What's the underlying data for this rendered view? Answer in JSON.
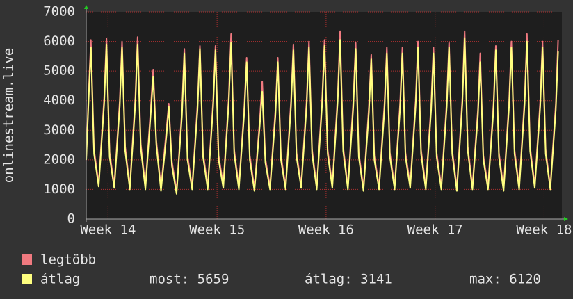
{
  "chart_data": {
    "type": "line",
    "ylabel": "onlinestream.live",
    "x": [
      0,
      0.15,
      0.3,
      0.5,
      0.8,
      1.15,
      1.3,
      1.5,
      1.8,
      2.15,
      2.3,
      2.5,
      2.8,
      3.15,
      3.3,
      3.5,
      3.8,
      4.15,
      4.3,
      4.5,
      4.8,
      5.15,
      5.3,
      5.5,
      5.8,
      6.15,
      6.3,
      6.5,
      6.8,
      7.15,
      7.3,
      7.5,
      7.8,
      8.15,
      8.3,
      8.5,
      8.8,
      9.15,
      9.3,
      9.5,
      9.8,
      10.15,
      10.3,
      10.5,
      10.8,
      11.15,
      11.3,
      11.5,
      11.8,
      12.15,
      12.3,
      12.5,
      12.8,
      13.15,
      13.3,
      13.5,
      13.8,
      14.15,
      14.3,
      14.5,
      14.8,
      15.15,
      15.3,
      15.5,
      15.8,
      16.15,
      16.3,
      16.5,
      16.8,
      17.15,
      17.3,
      17.5,
      17.8,
      18.15,
      18.3,
      18.5,
      18.8,
      19.15,
      19.3,
      19.5,
      19.8,
      20.15,
      20.3,
      20.5,
      20.8,
      21.15,
      21.3,
      21.5,
      21.8,
      22.15,
      22.3,
      22.5,
      22.8,
      23.15,
      23.3,
      23.5,
      23.8,
      24.15,
      24.3,
      24.5,
      24.8,
      25.15,
      25.3,
      25.5,
      25.8,
      26.15,
      26.3,
      26.5,
      26.8,
      27.15,
      27.3,
      27.5,
      27.8,
      28.15,
      28.3,
      28.5,
      28.8,
      29.15,
      29.3,
      29.5,
      29.8,
      30.15,
      30.3
    ],
    "series": [
      {
        "name": "legtöbb",
        "color": "#f07a80",
        "values": [
          2100,
          4200,
          6050,
          2350,
          1200,
          4100,
          6100,
          2250,
          1150,
          4000,
          6000,
          2450,
          1100,
          4100,
          6150,
          2550,
          1100,
          3800,
          5050,
          2650,
          1050,
          3000,
          3900,
          1950,
          950,
          3700,
          5750,
          2150,
          1100,
          3900,
          5850,
          2250,
          1100,
          4000,
          5850,
          2150,
          1150,
          4100,
          6250,
          2350,
          1100,
          3800,
          5450,
          2150,
          1050,
          3400,
          4650,
          2050,
          1100,
          3700,
          5450,
          2150,
          1100,
          4000,
          5900,
          2250,
          1150,
          4000,
          6000,
          2350,
          1100,
          4100,
          6050,
          2350,
          1150,
          4200,
          6350,
          2450,
          1100,
          4000,
          5950,
          2250,
          1050,
          3800,
          5550,
          2150,
          1100,
          3900,
          5800,
          2250,
          1100,
          3900,
          5800,
          2250,
          1150,
          4000,
          6000,
          2350,
          1100,
          3900,
          5800,
          2250,
          1100,
          4000,
          5950,
          2350,
          1050,
          4100,
          6350,
          2450,
          1100,
          3700,
          5600,
          2150,
          1100,
          3900,
          5850,
          2250,
          1050,
          4000,
          6000,
          2350,
          1100,
          4100,
          6250,
          2450,
          1150,
          4000,
          6000,
          2350,
          1100,
          3900,
          6050
        ]
      },
      {
        "name": "átlag",
        "color": "#ffff80",
        "values": [
          2000,
          4000,
          5800,
          2200,
          1100,
          3900,
          5900,
          2100,
          1050,
          3800,
          5800,
          2300,
          1000,
          3900,
          5900,
          2400,
          1000,
          3600,
          4800,
          2500,
          950,
          2800,
          3800,
          1800,
          850,
          3500,
          5600,
          2000,
          1000,
          3700,
          5750,
          2100,
          1000,
          3800,
          5700,
          2000,
          1050,
          3900,
          5950,
          2200,
          1000,
          3600,
          5300,
          2000,
          950,
          3200,
          4300,
          1900,
          1000,
          3500,
          5300,
          2000,
          1000,
          3800,
          5700,
          2100,
          1050,
          3800,
          5800,
          2200,
          1000,
          3900,
          5850,
          2200,
          1050,
          4000,
          6050,
          2300,
          1000,
          3800,
          5750,
          2100,
          950,
          3600,
          5400,
          2000,
          1000,
          3700,
          5600,
          2100,
          1000,
          3700,
          5600,
          2100,
          1050,
          3800,
          5800,
          2200,
          1000,
          3700,
          5600,
          2100,
          1000,
          3800,
          5800,
          2200,
          950,
          3900,
          6120,
          2300,
          1000,
          3500,
          5300,
          2000,
          1000,
          3700,
          5700,
          2100,
          950,
          3800,
          5800,
          2200,
          1000,
          3900,
          6000,
          2300,
          1050,
          3800,
          5800,
          2200,
          1000,
          3700,
          5659
        ]
      }
    ],
    "xlim": [
      0,
      30.54
    ],
    "xticks": [
      {
        "value": 1.4,
        "label": "Week 14"
      },
      {
        "value": 8.4,
        "label": "Week 15"
      },
      {
        "value": 15.4,
        "label": "Week 16"
      },
      {
        "value": 22.4,
        "label": "Week 17"
      },
      {
        "value": 29.4,
        "label": "Week 18"
      }
    ],
    "ylim": [
      0,
      7000
    ],
    "yticks": [
      0,
      1000,
      2000,
      3000,
      4000,
      5000,
      6000,
      7000
    ],
    "grid": true,
    "stats": [
      "most: 5659",
      "átlag: 3141",
      "max: 6120"
    ]
  }
}
